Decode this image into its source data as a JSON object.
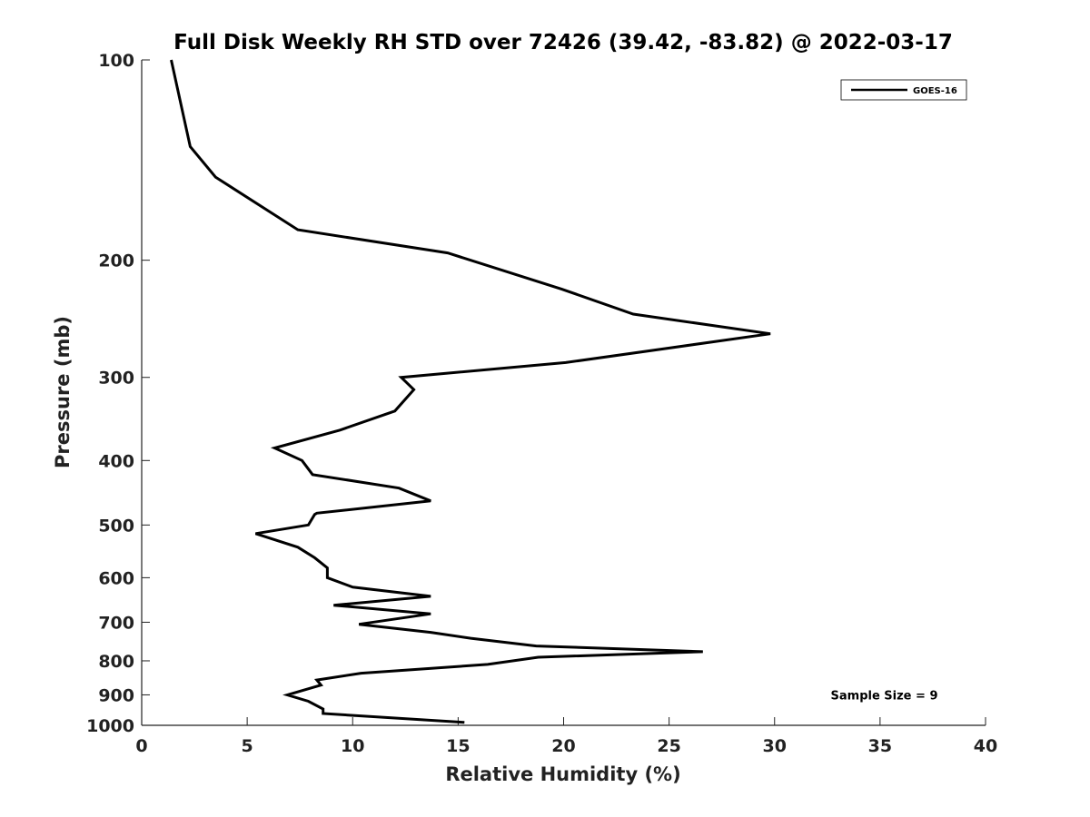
{
  "chart_data": {
    "type": "line",
    "title": "Full Disk Weekly RH STD over 72426 (39.42, -83.82) @ 2022-03-17",
    "xlabel": "Relative Humidity (%)",
    "ylabel": "Pressure (mb)",
    "xlim": [
      0,
      40
    ],
    "ylim": [
      1000,
      100
    ],
    "yscale": "log",
    "x_ticks": [
      "0",
      "5",
      "10",
      "15",
      "20",
      "25",
      "30",
      "35",
      "40"
    ],
    "y_ticks": [
      "100",
      "200",
      "300",
      "400",
      "500",
      "600",
      "700",
      "800",
      "900",
      "1000"
    ],
    "legend_position": "top-right",
    "grid": false,
    "series": [
      {
        "name": "GOES-16",
        "color": "#000000",
        "points": [
          [
            1.4,
            100
          ],
          [
            2.3,
            135
          ],
          [
            3.5,
            150
          ],
          [
            7.4,
            180
          ],
          [
            14.5,
            195
          ],
          [
            19.9,
            221
          ],
          [
            23.3,
            241
          ],
          [
            29.8,
            258
          ],
          [
            20.1,
            285
          ],
          [
            12.3,
            300
          ],
          [
            12.9,
            313
          ],
          [
            12.0,
            337
          ],
          [
            9.4,
            360
          ],
          [
            6.3,
            383
          ],
          [
            7.6,
            400
          ],
          [
            8.1,
            420
          ],
          [
            12.2,
            440
          ],
          [
            13.7,
            460
          ],
          [
            8.3,
            480
          ],
          [
            8.2,
            482
          ],
          [
            7.9,
            500
          ],
          [
            5.4,
            515
          ],
          [
            7.4,
            540
          ],
          [
            8.2,
            560
          ],
          [
            8.8,
            580
          ],
          [
            8.8,
            600
          ],
          [
            10.0,
            620
          ],
          [
            13.7,
            640
          ],
          [
            9.1,
            660
          ],
          [
            13.7,
            680
          ],
          [
            10.3,
            705
          ],
          [
            13.7,
            725
          ],
          [
            15.6,
            740
          ],
          [
            18.7,
            760
          ],
          [
            26.6,
            775
          ],
          [
            18.8,
            790
          ],
          [
            16.4,
            810
          ],
          [
            10.4,
            835
          ],
          [
            8.3,
            855
          ],
          [
            8.5,
            870
          ],
          [
            6.9,
            900
          ],
          [
            7.9,
            920
          ],
          [
            8.6,
            945
          ],
          [
            8.6,
            960
          ],
          [
            15.3,
            990
          ]
        ]
      }
    ],
    "annotations": [
      {
        "text": "Sample Size = 9",
        "x": 35.2,
        "y": 900
      }
    ]
  }
}
